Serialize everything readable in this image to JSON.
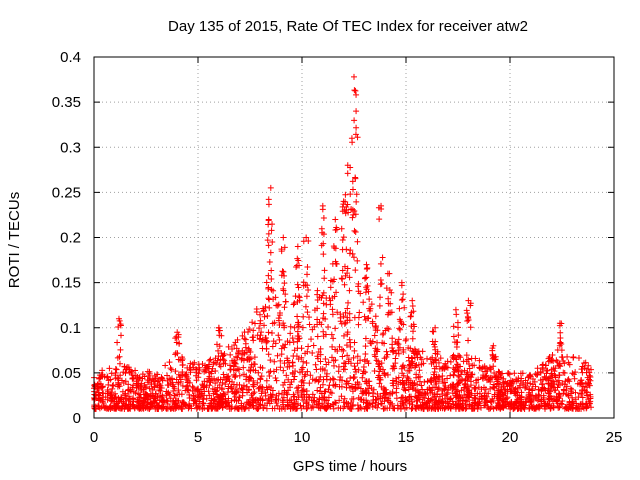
{
  "chart_data": {
    "type": "scatter",
    "title": "Day 135 of 2015, Rate Of TEC Index for receiver atw2",
    "xlabel": "GPS time / hours",
    "ylabel": "ROTI / TECUs",
    "xlim": [
      0,
      25
    ],
    "ylim": [
      0,
      0.4
    ],
    "xticks": [
      0,
      5,
      10,
      15,
      20,
      25
    ],
    "yticks": [
      0,
      0.05,
      0.1,
      0.15,
      0.2,
      0.25,
      0.3,
      0.35,
      0.4
    ],
    "xtick_labels": [
      "0",
      "5",
      "10",
      "15",
      "20",
      "25"
    ],
    "ytick_labels": [
      "0",
      "0.05",
      "0.1",
      "0.15",
      "0.2",
      "0.25",
      "0.3",
      "0.35",
      "0.4"
    ],
    "grid": true,
    "marker": "+",
    "color": "#ff0000",
    "x_data_range": [
      0,
      23.9
    ],
    "envelope": {
      "hours": [
        0,
        1,
        2,
        3,
        4,
        5,
        6,
        7,
        8,
        9,
        10,
        11,
        12,
        13,
        14,
        15,
        16,
        17,
        18,
        19,
        20,
        21,
        22,
        23,
        23.9
      ],
      "typical_max": [
        0.05,
        0.06,
        0.055,
        0.05,
        0.07,
        0.06,
        0.07,
        0.09,
        0.13,
        0.14,
        0.13,
        0.15,
        0.17,
        0.14,
        0.12,
        0.09,
        0.07,
        0.07,
        0.07,
        0.06,
        0.05,
        0.05,
        0.07,
        0.07,
        0.06
      ],
      "baseline_min": 0.01
    },
    "peaks": [
      {
        "x": 1.2,
        "y": 0.11
      },
      {
        "x": 4.0,
        "y": 0.095
      },
      {
        "x": 6.0,
        "y": 0.1
      },
      {
        "x": 8.5,
        "y": 0.255
      },
      {
        "x": 8.4,
        "y": 0.22
      },
      {
        "x": 9.1,
        "y": 0.2
      },
      {
        "x": 9.8,
        "y": 0.19
      },
      {
        "x": 10.2,
        "y": 0.2
      },
      {
        "x": 11.0,
        "y": 0.235
      },
      {
        "x": 11.6,
        "y": 0.22
      },
      {
        "x": 12.0,
        "y": 0.24
      },
      {
        "x": 12.2,
        "y": 0.28
      },
      {
        "x": 12.4,
        "y": 0.31
      },
      {
        "x": 12.5,
        "y": 0.378
      },
      {
        "x": 12.6,
        "y": 0.34
      },
      {
        "x": 13.1,
        "y": 0.17
      },
      {
        "x": 13.8,
        "y": 0.235
      },
      {
        "x": 14.2,
        "y": 0.16
      },
      {
        "x": 14.8,
        "y": 0.15
      },
      {
        "x": 15.3,
        "y": 0.13
      },
      {
        "x": 16.4,
        "y": 0.1
      },
      {
        "x": 17.4,
        "y": 0.12
      },
      {
        "x": 18.0,
        "y": 0.13
      },
      {
        "x": 19.2,
        "y": 0.08
      },
      {
        "x": 22.4,
        "y": 0.105
      }
    ]
  }
}
